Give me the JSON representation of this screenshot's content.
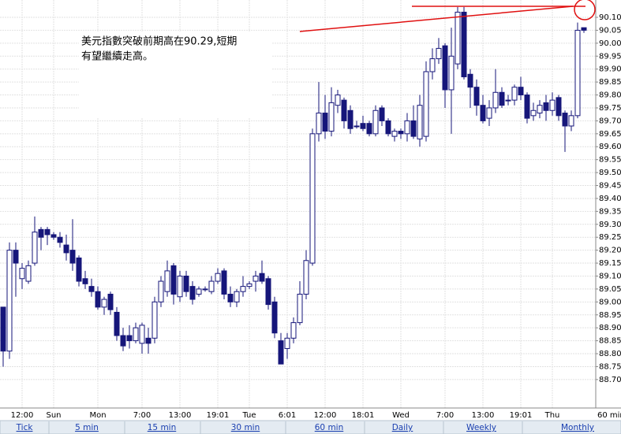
{
  "chart_data": {
    "type": "candlestick",
    "annotation": [
      "美元指數突破前期高在90.29,短期",
      "有望繼續走高。"
    ],
    "x_label": "60 min",
    "categories": [
      null,
      null,
      null,
      "12:00",
      null,
      null,
      null,
      null,
      "Sun",
      null,
      null,
      null,
      null,
      null,
      null,
      "Mon",
      null,
      null,
      null,
      null,
      null,
      null,
      "7:00",
      null,
      null,
      null,
      null,
      null,
      "13:00",
      null,
      null,
      null,
      null,
      null,
      "19:01",
      null,
      null,
      null,
      null,
      "Tue",
      null,
      null,
      null,
      null,
      null,
      "6:01",
      null,
      null,
      null,
      null,
      null,
      "12:00",
      null,
      null,
      null,
      null,
      null,
      "18:01",
      null,
      null,
      null,
      null,
      null,
      "Wed",
      null,
      null,
      null,
      null,
      null,
      null,
      "7:00",
      null,
      null,
      null,
      null,
      null,
      "13:00",
      null,
      null,
      null,
      null,
      null,
      "19:01",
      null,
      null,
      null,
      null,
      "Thu",
      null,
      null,
      null,
      null,
      null
    ],
    "open": [
      88.98,
      88.81,
      89.2,
      89.09,
      89.08,
      89.15,
      89.28,
      89.28,
      89.26,
      89.25,
      89.22,
      89.2,
      89.17,
      89.09,
      89.06,
      89.04,
      88.98,
      89.03,
      88.96,
      88.87,
      88.87,
      88.85,
      88.84,
      88.86,
      88.86,
      89.0,
      89.04,
      89.14,
      89.02,
      89.1,
      89.06,
      89.03,
      89.05,
      89.04,
      89.08,
      89.12,
      89.03,
      89.0,
      89.04,
      89.06,
      89.08,
      89.11,
      89.09,
      89.0,
      88.85,
      88.82,
      88.86,
      88.92,
      89.03,
      89.15,
      89.65,
      89.73,
      89.66,
      89.76,
      89.78,
      89.74,
      89.68,
      89.69,
      89.69,
      89.65,
      89.75,
      89.7,
      89.64,
      89.66,
      89.65,
      89.7,
      89.63,
      89.64,
      89.89,
      89.94,
      89.99,
      89.82,
      89.92,
      90.12,
      89.88,
      89.83,
      89.76,
      89.71,
      89.75,
      89.81,
      89.78,
      89.78,
      89.83,
      89.8,
      89.72,
      89.73,
      89.77,
      89.74,
      89.79,
      89.73,
      89.68,
      89.72,
      90.06
    ],
    "high": [
      88.98,
      89.23,
      89.23,
      89.15,
      89.16,
      89.33,
      89.29,
      89.29,
      89.27,
      89.27,
      89.26,
      89.32,
      89.18,
      89.12,
      89.09,
      89.06,
      89.02,
      89.04,
      88.98,
      88.9,
      88.91,
      88.92,
      88.92,
      88.9,
      89.02,
      89.1,
      89.16,
      89.15,
      89.12,
      89.12,
      89.08,
      89.06,
      89.06,
      89.1,
      89.13,
      89.13,
      89.06,
      89.05,
      89.1,
      89.08,
      89.12,
      89.16,
      89.1,
      89.02,
      88.88,
      88.88,
      88.94,
      89.08,
      89.2,
      89.67,
      89.85,
      89.8,
      89.83,
      89.82,
      89.79,
      89.76,
      89.7,
      89.72,
      89.7,
      89.76,
      89.76,
      89.71,
      89.67,
      89.67,
      89.73,
      89.76,
      89.8,
      89.93,
      89.98,
      90.02,
      90.0,
      90.06,
      90.14,
      90.14,
      89.9,
      89.86,
      89.8,
      89.78,
      89.9,
      89.83,
      89.8,
      89.84,
      89.87,
      89.81,
      89.77,
      89.78,
      89.8,
      89.81,
      89.8,
      89.74,
      89.74,
      90.08,
      90.06
    ],
    "low": [
      88.75,
      88.78,
      89.02,
      89.05,
      89.07,
      89.14,
      89.2,
      89.22,
      89.24,
      89.21,
      89.16,
      89.12,
      89.06,
      89.05,
      89.02,
      88.97,
      88.95,
      88.95,
      88.85,
      88.81,
      88.82,
      88.84,
      88.8,
      88.8,
      88.84,
      88.98,
      89.02,
      88.99,
      89.0,
      89.02,
      88.99,
      89.02,
      89.04,
      89.03,
      89.07,
      89.01,
      88.98,
      88.98,
      89.02,
      89.05,
      89.04,
      89.07,
      88.97,
      88.86,
      88.76,
      88.78,
      88.84,
      88.91,
      89.01,
      89.14,
      89.62,
      89.63,
      89.64,
      89.73,
      89.67,
      89.65,
      89.67,
      89.66,
      89.64,
      89.64,
      89.68,
      89.64,
      89.62,
      89.63,
      89.62,
      89.63,
      89.6,
      89.62,
      89.86,
      89.92,
      89.75,
      89.65,
      89.9,
      89.86,
      89.75,
      89.72,
      89.69,
      89.68,
      89.73,
      89.75,
      89.76,
      89.76,
      89.78,
      89.69,
      89.7,
      89.71,
      89.7,
      89.72,
      89.7,
      89.58,
      89.66,
      89.71,
      90.04
    ],
    "close": [
      88.81,
      89.2,
      89.15,
      89.13,
      89.14,
      89.27,
      89.25,
      89.26,
      89.25,
      89.23,
      89.19,
      89.15,
      89.08,
      89.07,
      89.04,
      88.98,
      89.01,
      88.97,
      88.87,
      88.83,
      88.85,
      88.9,
      88.91,
      88.84,
      89.0,
      89.08,
      89.12,
      89.03,
      89.1,
      89.04,
      89.01,
      89.05,
      89.05,
      89.08,
      89.11,
      89.03,
      89.0,
      89.04,
      89.06,
      89.07,
      89.1,
      89.08,
      88.99,
      88.88,
      88.76,
      88.86,
      88.92,
      89.03,
      89.16,
      89.65,
      89.73,
      89.66,
      89.77,
      89.8,
      89.7,
      89.67,
      89.68,
      89.67,
      89.65,
      89.74,
      89.7,
      89.65,
      89.66,
      89.65,
      89.7,
      89.64,
      89.76,
      89.89,
      89.94,
      89.98,
      89.82,
      89.95,
      90.12,
      89.87,
      89.83,
      89.76,
      89.7,
      89.75,
      89.81,
      89.76,
      89.78,
      89.83,
      89.8,
      89.71,
      89.74,
      89.76,
      89.74,
      89.78,
      89.72,
      89.68,
      89.72,
      90.05,
      90.05
    ],
    "ylim": [
      88.59,
      90.167
    ],
    "yticks": [
      {
        "value": 88.7,
        "label": "88.70"
      },
      88.75,
      {
        "value": 88.8,
        "label": "88.80"
      },
      88.85,
      {
        "value": 88.9,
        "label": "88.90"
      },
      88.95,
      {
        "value": 89,
        "label": "89.00"
      },
      89.05,
      {
        "value": 89.1,
        "label": "89.10"
      },
      89.15,
      {
        "value": 89.2,
        "label": "89.20"
      },
      89.25,
      {
        "value": 89.3,
        "label": "89.30"
      },
      89.35,
      {
        "value": 89.4,
        "label": "89.40"
      },
      89.45,
      {
        "value": 89.5,
        "label": "89.50"
      },
      89.55,
      {
        "value": 89.6,
        "label": "89.60"
      },
      89.65,
      {
        "value": 89.7,
        "label": "89.70"
      },
      89.75,
      {
        "value": 89.8,
        "label": "89.80"
      },
      89.85,
      {
        "value": 89.9,
        "label": "89.90"
      },
      89.95,
      {
        "value": 90,
        "label": "90.00"
      },
      90.05,
      {
        "value": 90.1,
        "label": "90.10"
      }
    ],
    "grid": true,
    "down_color": "#16167a",
    "up_color": "#ffffff",
    "outline_color": "#16167a"
  },
  "tabs": [
    "Tick",
    "5 min",
    "15 min",
    "30 min",
    "60 min",
    "Daily",
    "Weekly",
    "Monthly"
  ]
}
